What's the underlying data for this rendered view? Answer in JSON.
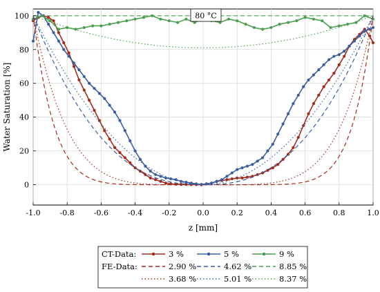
{
  "chart_data": {
    "type": "line",
    "title": "",
    "annotation": "80 °C",
    "xlabel": "z [mm]",
    "ylabel": "Water Saturation [%]",
    "xlim": [
      -1.0,
      1.0
    ],
    "ylim": [
      -12,
      104
    ],
    "xticks": [
      "-1.0",
      "-0.8",
      "-0.6",
      "-0.4",
      "-0.2",
      "0.0",
      "0.2",
      "0.4",
      "0.6",
      "0.8",
      "1.0"
    ],
    "yticks": [
      "0",
      "20",
      "40",
      "60",
      "80",
      "100"
    ],
    "grid": true,
    "legend": {
      "placement": "bottom",
      "ct_label": "CT-Data:",
      "fe_label": "FE-Data:"
    },
    "series": [
      {
        "name": "3 %",
        "group": "CT-Data",
        "color": "#a52a1a",
        "style": "solid-marker",
        "x": [
          -1.0,
          -0.97,
          -0.94,
          -0.91,
          -0.88,
          -0.85,
          -0.82,
          -0.79,
          -0.76,
          -0.73,
          -0.7,
          -0.67,
          -0.64,
          -0.61,
          -0.58,
          -0.55,
          -0.52,
          -0.49,
          -0.46,
          -0.43,
          -0.4,
          -0.37,
          -0.34,
          -0.31,
          -0.28,
          -0.25,
          -0.22,
          -0.19,
          -0.16,
          -0.13,
          -0.1,
          -0.07,
          -0.04,
          -0.01,
          0.02,
          0.05,
          0.08,
          0.11,
          0.14,
          0.17,
          0.2,
          0.23,
          0.26,
          0.29,
          0.32,
          0.35,
          0.38,
          0.41,
          0.44,
          0.47,
          0.5,
          0.53,
          0.56,
          0.59,
          0.62,
          0.65,
          0.68,
          0.71,
          0.74,
          0.77,
          0.8,
          0.83,
          0.86,
          0.89,
          0.92,
          0.95,
          0.98,
          1.0
        ],
        "y": [
          97,
          99,
          100,
          99,
          97,
          90,
          84,
          78,
          70,
          62,
          56,
          50,
          44,
          38,
          32,
          27,
          22,
          19,
          16,
          13,
          10,
          8,
          6,
          4,
          3,
          2,
          1,
          0.5,
          0.3,
          0.2,
          0.2,
          0.1,
          0.1,
          0,
          0.5,
          1,
          2,
          2.5,
          3,
          3.5,
          4,
          4,
          4.5,
          5,
          6,
          7,
          8.5,
          10,
          12,
          15,
          18,
          22,
          28,
          35,
          42,
          48,
          53,
          58,
          62,
          66,
          71,
          76,
          82,
          86,
          89,
          92,
          88,
          84
        ]
      },
      {
        "name": "5 %",
        "group": "CT-Data",
        "color": "#3a5ea0",
        "style": "solid-marker",
        "x": [
          -1.0,
          -0.97,
          -0.94,
          -0.91,
          -0.88,
          -0.85,
          -0.82,
          -0.79,
          -0.76,
          -0.73,
          -0.7,
          -0.67,
          -0.64,
          -0.61,
          -0.58,
          -0.55,
          -0.52,
          -0.49,
          -0.46,
          -0.43,
          -0.4,
          -0.37,
          -0.34,
          -0.31,
          -0.28,
          -0.25,
          -0.22,
          -0.19,
          -0.16,
          -0.13,
          -0.1,
          -0.07,
          -0.04,
          -0.01,
          0.02,
          0.05,
          0.08,
          0.11,
          0.14,
          0.17,
          0.2,
          0.23,
          0.26,
          0.29,
          0.32,
          0.35,
          0.38,
          0.41,
          0.44,
          0.47,
          0.5,
          0.53,
          0.56,
          0.59,
          0.62,
          0.65,
          0.68,
          0.71,
          0.74,
          0.77,
          0.8,
          0.83,
          0.86,
          0.89,
          0.92,
          0.95,
          0.98,
          1.0
        ],
        "y": [
          85,
          102,
          100,
          95,
          90,
          85,
          80,
          76,
          72,
          68,
          64,
          60,
          57,
          54,
          51,
          47,
          43,
          38,
          32,
          26,
          20,
          15,
          11,
          8,
          6,
          5,
          4,
          3.5,
          3,
          2,
          1.5,
          1,
          0.5,
          0.2,
          0.5,
          1,
          2,
          3,
          5,
          7,
          9,
          10,
          11,
          12,
          14,
          16,
          20,
          24,
          30,
          36,
          42,
          48,
          53,
          58,
          62,
          65,
          68,
          71,
          74,
          76,
          77,
          79,
          82,
          85,
          88,
          91,
          92,
          93
        ]
      },
      {
        "name": "9 %",
        "group": "CT-Data",
        "color": "#4aa050",
        "style": "solid-marker",
        "x": [
          -1.0,
          -0.95,
          -0.9,
          -0.85,
          -0.8,
          -0.75,
          -0.7,
          -0.65,
          -0.6,
          -0.55,
          -0.5,
          -0.45,
          -0.4,
          -0.35,
          -0.3,
          -0.25,
          -0.2,
          -0.15,
          -0.1,
          -0.05,
          0.0,
          0.05,
          0.1,
          0.15,
          0.2,
          0.25,
          0.3,
          0.35,
          0.4,
          0.45,
          0.5,
          0.55,
          0.6,
          0.65,
          0.7,
          0.75,
          0.8,
          0.85,
          0.9,
          0.95,
          1.0
        ],
        "y": [
          98,
          100,
          97,
          92,
          93,
          92,
          93,
          94,
          94,
          95,
          96,
          97,
          98,
          99,
          100,
          98,
          97,
          96,
          98,
          96,
          98,
          97,
          96,
          98,
          97,
          95,
          93,
          92,
          93,
          95,
          96,
          97,
          99,
          98,
          97,
          93,
          94,
          95,
          96,
          100,
          98
        ]
      },
      {
        "name": "2.90 %",
        "group": "FE-Data",
        "color": "#a52a1a",
        "style": "dashed",
        "p": 8,
        "floor": 0,
        "top": 100
      },
      {
        "name": "4.62 %",
        "group": "FE-Data",
        "color": "#3a5ea0",
        "style": "dashed",
        "p": 2.5,
        "floor": 0,
        "top": 100
      },
      {
        "name": "8.85 %",
        "group": "FE-Data",
        "color": "#4aa050",
        "style": "dashed",
        "p": 1,
        "floor": 100,
        "top": 100
      },
      {
        "name": "3.68 %",
        "group": "FE-Data",
        "color": "#a52a1a",
        "style": "dotted",
        "p": 5,
        "floor": 0,
        "top": 100
      },
      {
        "name": "5.01 %",
        "group": "FE-Data",
        "color": "#3a5ea0",
        "style": "dotted",
        "p": 2,
        "floor": 0,
        "top": 100
      },
      {
        "name": "8.37 %",
        "group": "FE-Data",
        "color": "#4aa050",
        "style": "dotted",
        "p": 2,
        "floor": 81,
        "top": 100
      }
    ]
  }
}
